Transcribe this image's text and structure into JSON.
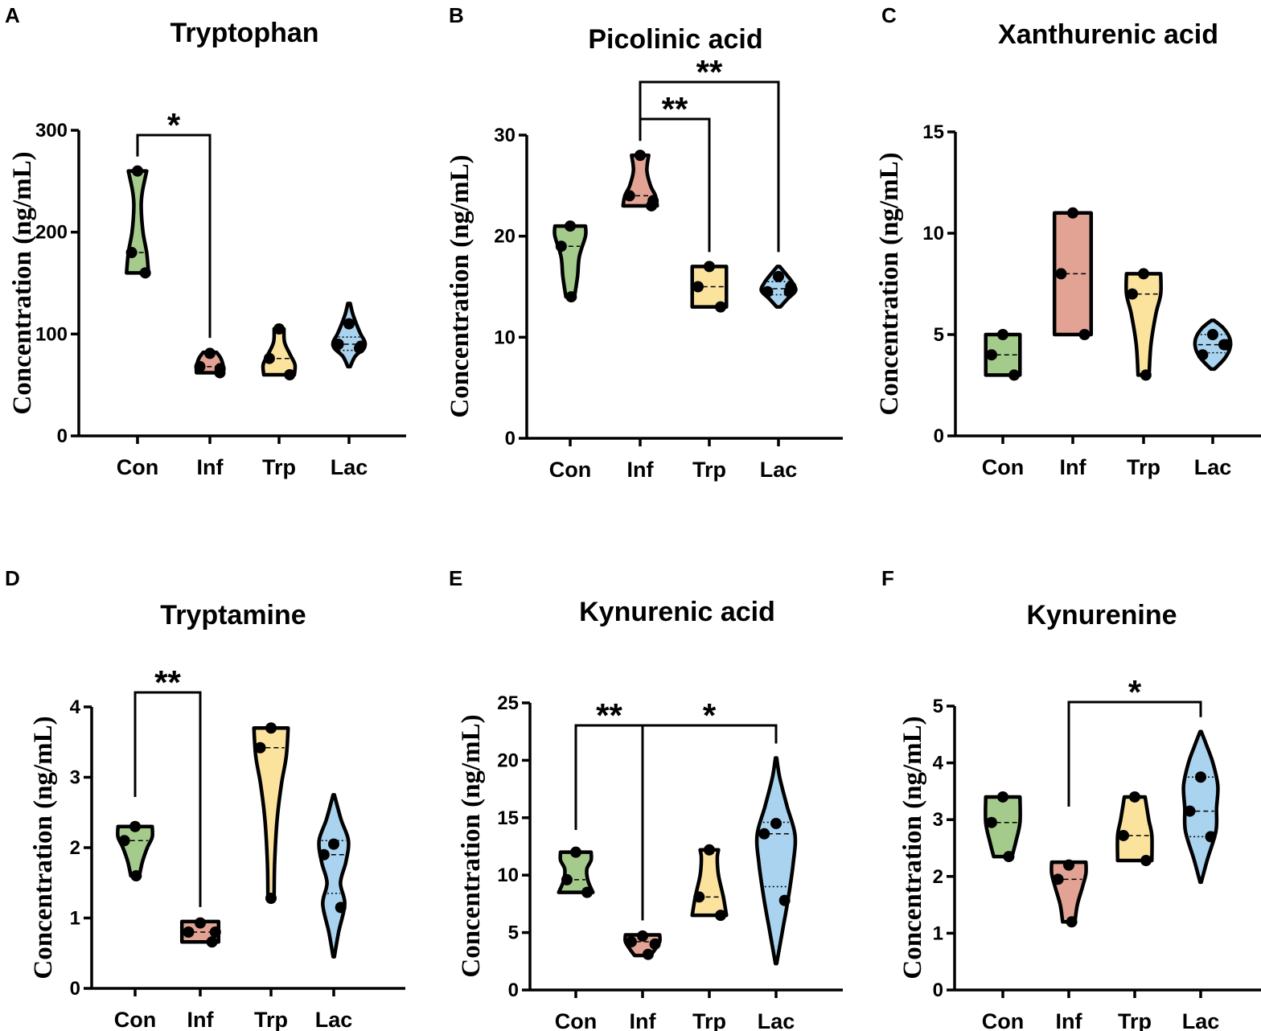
{
  "colors": {
    "Con": "#a4cb8b",
    "Inf": "#e2a394",
    "Trp": "#fbe39e",
    "Lac": "#a9d3ef"
  },
  "chart_data": [
    {
      "type": "violin",
      "letter": "A",
      "title": "Tryptophan",
      "ylabel": "Concentration (ng/mL)",
      "categories": [
        "Con",
        "Inf",
        "Trp",
        "Lac"
      ],
      "ylim": [
        0,
        300
      ],
      "yticks": [
        "0",
        "100",
        "200",
        "300"
      ],
      "series": [
        {
          "name": "Con",
          "points": [
            260,
            180,
            160
          ],
          "median": 180,
          "range": [
            160,
            260
          ],
          "shape": [
            [
              160,
              0.36
            ],
            [
              180,
              0.3
            ],
            [
              200,
              0.18
            ],
            [
              225,
              0.12
            ],
            [
              240,
              0.16
            ],
            [
              260,
              0.3
            ]
          ]
        },
        {
          "name": "Inf",
          "points": [
            81,
            68,
            62,
            66
          ],
          "median": 68,
          "range": [
            62,
            82
          ],
          "shape": [
            [
              62,
              0.44
            ],
            [
              68,
              0.44
            ],
            [
              76,
              0.36
            ],
            [
              82,
              0.22
            ]
          ]
        },
        {
          "name": "Trp",
          "points": [
            105,
            76,
            60
          ],
          "median": 76,
          "range": [
            60,
            105
          ],
          "shape": [
            [
              60,
              0.5
            ],
            [
              70,
              0.52
            ],
            [
              80,
              0.36
            ],
            [
              92,
              0.18
            ],
            [
              105,
              0.16
            ]
          ]
        },
        {
          "name": "Lac",
          "points": [
            110,
            90,
            86,
            88
          ],
          "median": 90,
          "range": [
            68,
            130
          ],
          "quartiles": [
            84,
            97
          ],
          "shape": [
            [
              68,
              0.04
            ],
            [
              78,
              0.2
            ],
            [
              86,
              0.48
            ],
            [
              92,
              0.52
            ],
            [
              100,
              0.38
            ],
            [
              110,
              0.24
            ],
            [
              120,
              0.12
            ],
            [
              130,
              0.04
            ]
          ]
        }
      ],
      "significance": [
        {
          "label": "*",
          "from": "Con",
          "to": "Inf"
        }
      ]
    },
    {
      "type": "violin",
      "letter": "B",
      "title": "Picolinic acid",
      "ylabel": "Concentration (ng/mL)",
      "categories": [
        "Con",
        "Inf",
        "Trp",
        "Lac"
      ],
      "ylim": [
        0,
        30
      ],
      "yticks": [
        "0",
        "10",
        "20",
        "30"
      ],
      "series": [
        {
          "name": "Con",
          "points": [
            21,
            19,
            14
          ],
          "median": 19,
          "range": [
            14,
            21
          ],
          "shape": [
            [
              14,
              0.14
            ],
            [
              16,
              0.24
            ],
            [
              18,
              0.3
            ],
            [
              20,
              0.5
            ],
            [
              21,
              0.5
            ]
          ]
        },
        {
          "name": "Inf",
          "points": [
            28,
            24,
            23,
            23.5
          ],
          "median": 24,
          "range": [
            23,
            28
          ],
          "shape": [
            [
              23,
              0.56
            ],
            [
              24,
              0.5
            ],
            [
              25,
              0.34
            ],
            [
              26.5,
              0.22
            ],
            [
              28,
              0.28
            ]
          ]
        },
        {
          "name": "Trp",
          "points": [
            17,
            15,
            13
          ],
          "median": 15,
          "range": [
            13,
            17
          ],
          "shape": [
            [
              13,
              0.56
            ],
            [
              15,
              0.56
            ],
            [
              17,
              0.56
            ]
          ]
        },
        {
          "name": "Lac",
          "points": [
            16,
            14.5,
            14.5,
            15
          ],
          "median": 14.8,
          "range": [
            13,
            17
          ],
          "quartiles": [
            14.2,
            15.5
          ],
          "shape": [
            [
              13,
              0.06
            ],
            [
              13.8,
              0.3
            ],
            [
              14.6,
              0.56
            ],
            [
              15.4,
              0.46
            ],
            [
              16.2,
              0.26
            ],
            [
              17,
              0.04
            ]
          ]
        }
      ],
      "significance": [
        {
          "label": "**",
          "from": "Inf",
          "to": "Trp"
        },
        {
          "label": "**",
          "from": "Inf",
          "to": "Lac"
        }
      ]
    },
    {
      "type": "violin",
      "letter": "C",
      "title": "Xanthurenic acid",
      "ylabel": "Concentration (ng/mL)",
      "categories": [
        "Con",
        "Inf",
        "Trp",
        "Lac"
      ],
      "ylim": [
        0,
        15
      ],
      "yticks": [
        "0",
        "5",
        "10",
        "15"
      ],
      "series": [
        {
          "name": "Con",
          "points": [
            5,
            4,
            3
          ],
          "median": 4,
          "range": [
            3,
            5
          ],
          "shape": [
            [
              3,
              0.56
            ],
            [
              4,
              0.56
            ],
            [
              5,
              0.56
            ]
          ]
        },
        {
          "name": "Inf",
          "points": [
            11,
            8,
            5
          ],
          "median": 8,
          "range": [
            5,
            11
          ],
          "shape": [
            [
              5,
              0.6
            ],
            [
              8,
              0.6
            ],
            [
              11,
              0.6
            ]
          ]
        },
        {
          "name": "Trp",
          "points": [
            8,
            7,
            3
          ],
          "median": 7,
          "range": [
            3,
            8
          ],
          "shape": [
            [
              3,
              0.18
            ],
            [
              4.5,
              0.24
            ],
            [
              6,
              0.4
            ],
            [
              7,
              0.56
            ],
            [
              8,
              0.56
            ]
          ]
        },
        {
          "name": "Lac",
          "points": [
            5,
            4,
            4.5,
            4.5
          ],
          "median": 4.5,
          "range": [
            3.3,
            5.7
          ],
          "quartiles": [
            4.1,
            5.0
          ],
          "shape": [
            [
              3.3,
              0.06
            ],
            [
              3.8,
              0.38
            ],
            [
              4.3,
              0.56
            ],
            [
              4.8,
              0.56
            ],
            [
              5.3,
              0.36
            ],
            [
              5.7,
              0.04
            ]
          ]
        }
      ],
      "significance": []
    },
    {
      "type": "violin",
      "letter": "D",
      "title": "Tryptamine",
      "ylabel": "Concentration (ng/mL)",
      "categories": [
        "Con",
        "Inf",
        "Trp",
        "Lac"
      ],
      "ylim": [
        0,
        4
      ],
      "yticks": [
        "0",
        "1",
        "2",
        "3",
        "4"
      ],
      "series": [
        {
          "name": "Con",
          "points": [
            2.3,
            2.1,
            1.6
          ],
          "median": 2.1,
          "range": [
            1.6,
            2.3
          ],
          "shape": [
            [
              1.6,
              0.14
            ],
            [
              1.8,
              0.24
            ],
            [
              2.0,
              0.4
            ],
            [
              2.15,
              0.56
            ],
            [
              2.3,
              0.56
            ]
          ]
        },
        {
          "name": "Inf",
          "points": [
            0.93,
            0.8,
            0.66,
            0.8
          ],
          "median": 0.8,
          "range": [
            0.66,
            0.95
          ],
          "shape": [
            [
              0.66,
              0.6
            ],
            [
              0.8,
              0.6
            ],
            [
              0.95,
              0.6
            ]
          ]
        },
        {
          "name": "Trp",
          "points": [
            3.7,
            3.42,
            1.28
          ],
          "median": 3.42,
          "range": [
            1.28,
            3.7
          ],
          "shape": [
            [
              1.28,
              0.1
            ],
            [
              1.8,
              0.12
            ],
            [
              2.4,
              0.2
            ],
            [
              2.9,
              0.34
            ],
            [
              3.3,
              0.5
            ],
            [
              3.7,
              0.56
            ]
          ]
        },
        {
          "name": "Lac",
          "points": [
            2.05,
            1.9,
            1.15
          ],
          "median": 1.9,
          "range": [
            0.45,
            2.75
          ],
          "quartiles": [
            1.35,
            2.1
          ],
          "shape": [
            [
              0.45,
              0.02
            ],
            [
              0.8,
              0.16
            ],
            [
              1.2,
              0.36
            ],
            [
              1.5,
              0.22
            ],
            [
              1.8,
              0.4
            ],
            [
              2.1,
              0.48
            ],
            [
              2.4,
              0.24
            ],
            [
              2.75,
              0.02
            ]
          ]
        }
      ],
      "significance": [
        {
          "label": "**",
          "from": "Con",
          "to": "Inf"
        }
      ]
    },
    {
      "type": "violin",
      "letter": "E",
      "title": "Kynurenic acid",
      "ylabel": "Concentration (ng/mL)",
      "categories": [
        "Con",
        "Inf",
        "Trp",
        "Lac"
      ],
      "ylim": [
        0,
        25
      ],
      "yticks": [
        "0",
        "5",
        "10",
        "15",
        "20",
        "25"
      ],
      "series": [
        {
          "name": "Con",
          "points": [
            12,
            9.6,
            8.5
          ],
          "median": 9.6,
          "range": [
            8.5,
            12
          ],
          "shape": [
            [
              8.5,
              0.56
            ],
            [
              9.5,
              0.4
            ],
            [
              10.5,
              0.36
            ],
            [
              11.3,
              0.5
            ],
            [
              12,
              0.5
            ]
          ]
        },
        {
          "name": "Inf",
          "points": [
            4.7,
            4.2,
            3.1,
            4.0
          ],
          "median": 4.2,
          "range": [
            3.0,
            4.8
          ],
          "shape": [
            [
              3.0,
              0.26
            ],
            [
              3.5,
              0.4
            ],
            [
              4.2,
              0.56
            ],
            [
              4.8,
              0.56
            ]
          ]
        },
        {
          "name": "Trp",
          "points": [
            12.2,
            8.1,
            6.5
          ],
          "median": 8.1,
          "range": [
            6.5,
            12.2
          ],
          "shape": [
            [
              6.5,
              0.56
            ],
            [
              8.1,
              0.46
            ],
            [
              10,
              0.3
            ],
            [
              11.5,
              0.26
            ],
            [
              12.2,
              0.3
            ]
          ]
        },
        {
          "name": "Lac",
          "points": [
            14.5,
            13.6,
            7.8
          ],
          "median": 13.6,
          "range": [
            2.3,
            20.2
          ],
          "quartiles": [
            9.0,
            14.6
          ],
          "shape": [
            [
              2.3,
              0.02
            ],
            [
              5,
              0.2
            ],
            [
              8,
              0.4
            ],
            [
              11,
              0.56
            ],
            [
              13.5,
              0.62
            ],
            [
              16,
              0.36
            ],
            [
              18.5,
              0.12
            ],
            [
              20.2,
              0.02
            ]
          ]
        }
      ],
      "significance": [
        {
          "label": "**",
          "from": "Con",
          "to": "Inf"
        },
        {
          "label": "*",
          "from": "Inf",
          "to": "Lac"
        }
      ]
    },
    {
      "type": "violin",
      "letter": "F",
      "title": "Kynurenine",
      "ylabel": "Concentration (ng/mL)",
      "categories": [
        "Con",
        "Inf",
        "Trp",
        "Lac"
      ],
      "ylim": [
        0,
        5
      ],
      "yticks": [
        "0",
        "1",
        "2",
        "3",
        "4",
        "5"
      ],
      "series": [
        {
          "name": "Con",
          "points": [
            3.4,
            2.95,
            2.35
          ],
          "median": 2.95,
          "range": [
            2.35,
            3.4
          ],
          "shape": [
            [
              2.35,
              0.3
            ],
            [
              2.6,
              0.42
            ],
            [
              2.95,
              0.56
            ],
            [
              3.4,
              0.56
            ]
          ]
        },
        {
          "name": "Inf",
          "points": [
            2.2,
            1.95,
            1.2
          ],
          "median": 1.95,
          "range": [
            1.2,
            2.25
          ],
          "shape": [
            [
              1.2,
              0.2
            ],
            [
              1.5,
              0.28
            ],
            [
              1.8,
              0.44
            ],
            [
              2.05,
              0.56
            ],
            [
              2.25,
              0.56
            ]
          ]
        },
        {
          "name": "Trp",
          "points": [
            3.4,
            2.72,
            2.28
          ],
          "median": 2.72,
          "range": [
            2.28,
            3.4
          ],
          "shape": [
            [
              2.28,
              0.56
            ],
            [
              2.72,
              0.56
            ],
            [
              3.0,
              0.46
            ],
            [
              3.4,
              0.34
            ]
          ]
        },
        {
          "name": "Lac",
          "points": [
            3.75,
            3.15,
            2.7
          ],
          "median": 3.15,
          "range": [
            1.9,
            4.55
          ],
          "quartiles": [
            2.7,
            3.75
          ],
          "shape": [
            [
              1.9,
              0.02
            ],
            [
              2.3,
              0.22
            ],
            [
              2.8,
              0.5
            ],
            [
              3.2,
              0.52
            ],
            [
              3.6,
              0.56
            ],
            [
              4.0,
              0.4
            ],
            [
              4.3,
              0.2
            ],
            [
              4.55,
              0.02
            ]
          ]
        }
      ],
      "significance": [
        {
          "label": "*",
          "from": "Inf",
          "to": "Lac"
        }
      ]
    }
  ]
}
